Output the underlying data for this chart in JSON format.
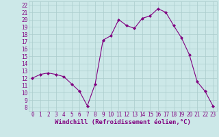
{
  "x": [
    0,
    1,
    2,
    3,
    4,
    5,
    6,
    7,
    8,
    9,
    10,
    11,
    12,
    13,
    14,
    15,
    16,
    17,
    18,
    19,
    20,
    21,
    22,
    23
  ],
  "y": [
    12,
    12.5,
    12.7,
    12.5,
    12.2,
    11.2,
    10.2,
    8.2,
    11.2,
    17.2,
    17.8,
    20.0,
    19.2,
    18.8,
    20.2,
    20.5,
    21.5,
    21.0,
    19.2,
    17.5,
    15.2,
    11.5,
    10.2,
    8.2
  ],
  "line_color": "#800080",
  "marker": "D",
  "marker_size": 2,
  "bg_color": "#cce8e8",
  "grid_color": "#aacccc",
  "xlabel": "Windchill (Refroidissement éolien,°C)",
  "ylabel_ticks": [
    8,
    9,
    10,
    11,
    12,
    13,
    14,
    15,
    16,
    17,
    18,
    19,
    20,
    21,
    22
  ],
  "ylim": [
    7.5,
    22.5
  ],
  "xlim": [
    -0.5,
    23.5
  ],
  "tick_label_color": "#800080",
  "xlabel_color": "#800080",
  "tick_fontsize": 5.5,
  "xlabel_fontsize": 6.5
}
